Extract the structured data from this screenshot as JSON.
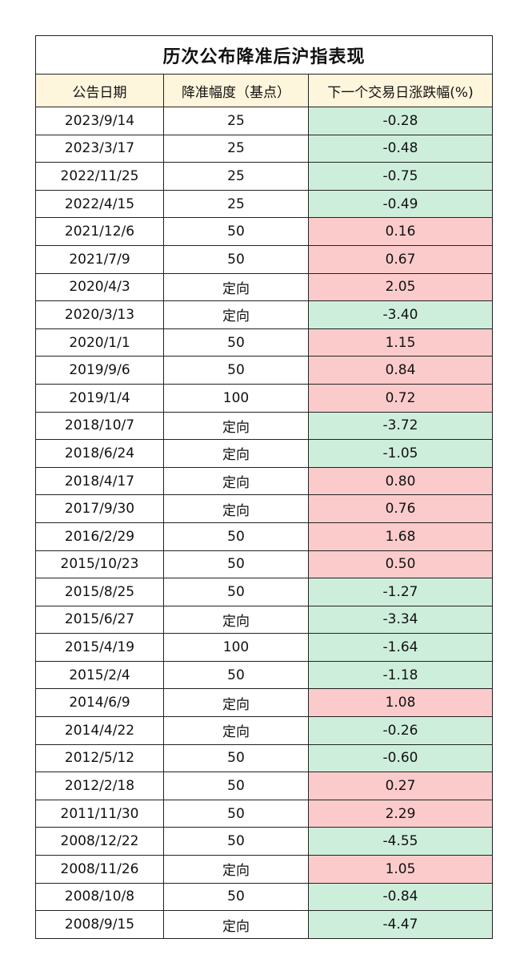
{
  "title": "历次公布降准后沪指表现",
  "headers": {
    "date": "公告日期",
    "amount": "降准幅度（基点）",
    "change": "下一个交易日涨跌幅(%)"
  },
  "colors": {
    "header_bg": "#fdf5dc",
    "negative_bg": "#cdeedb",
    "positive_bg": "#fbcbcb"
  },
  "rows": [
    {
      "date": "2023/9/14",
      "amount": "25",
      "change": "-0.28"
    },
    {
      "date": "2023/3/17",
      "amount": "25",
      "change": "-0.48"
    },
    {
      "date": "2022/11/25",
      "amount": "25",
      "change": "-0.75"
    },
    {
      "date": "2022/4/15",
      "amount": "25",
      "change": "-0.49"
    },
    {
      "date": "2021/12/6",
      "amount": "50",
      "change": "0.16"
    },
    {
      "date": "2021/7/9",
      "amount": "50",
      "change": "0.67"
    },
    {
      "date": "2020/4/3",
      "amount": "定向",
      "change": "2.05"
    },
    {
      "date": "2020/3/13",
      "amount": "定向",
      "change": "-3.40"
    },
    {
      "date": "2020/1/1",
      "amount": "50",
      "change": "1.15"
    },
    {
      "date": "2019/9/6",
      "amount": "50",
      "change": "0.84"
    },
    {
      "date": "2019/1/4",
      "amount": "100",
      "change": "0.72"
    },
    {
      "date": "2018/10/7",
      "amount": "定向",
      "change": "-3.72"
    },
    {
      "date": "2018/6/24",
      "amount": "定向",
      "change": "-1.05"
    },
    {
      "date": "2018/4/17",
      "amount": "定向",
      "change": "0.80"
    },
    {
      "date": "2017/9/30",
      "amount": "定向",
      "change": "0.76"
    },
    {
      "date": "2016/2/29",
      "amount": "50",
      "change": "1.68"
    },
    {
      "date": "2015/10/23",
      "amount": "50",
      "change": "0.50"
    },
    {
      "date": "2015/8/25",
      "amount": "50",
      "change": "-1.27"
    },
    {
      "date": "2015/6/27",
      "amount": "定向",
      "change": "-3.34"
    },
    {
      "date": "2015/4/19",
      "amount": "100",
      "change": "-1.64"
    },
    {
      "date": "2015/2/4",
      "amount": "50",
      "change": "-1.18"
    },
    {
      "date": "2014/6/9",
      "amount": "定向",
      "change": "1.08"
    },
    {
      "date": "2014/4/22",
      "amount": "定向",
      "change": "-0.26"
    },
    {
      "date": "2012/5/12",
      "amount": "50",
      "change": "-0.60"
    },
    {
      "date": "2012/2/18",
      "amount": "50",
      "change": "0.27"
    },
    {
      "date": "2011/11/30",
      "amount": "50",
      "change": "2.29"
    },
    {
      "date": "2008/12/22",
      "amount": "50",
      "change": "-4.55"
    },
    {
      "date": "2008/11/26",
      "amount": "定向",
      "change": "1.05"
    },
    {
      "date": "2008/10/8",
      "amount": "50",
      "change": "-0.84"
    },
    {
      "date": "2008/9/15",
      "amount": "定向",
      "change": "-4.47"
    }
  ]
}
